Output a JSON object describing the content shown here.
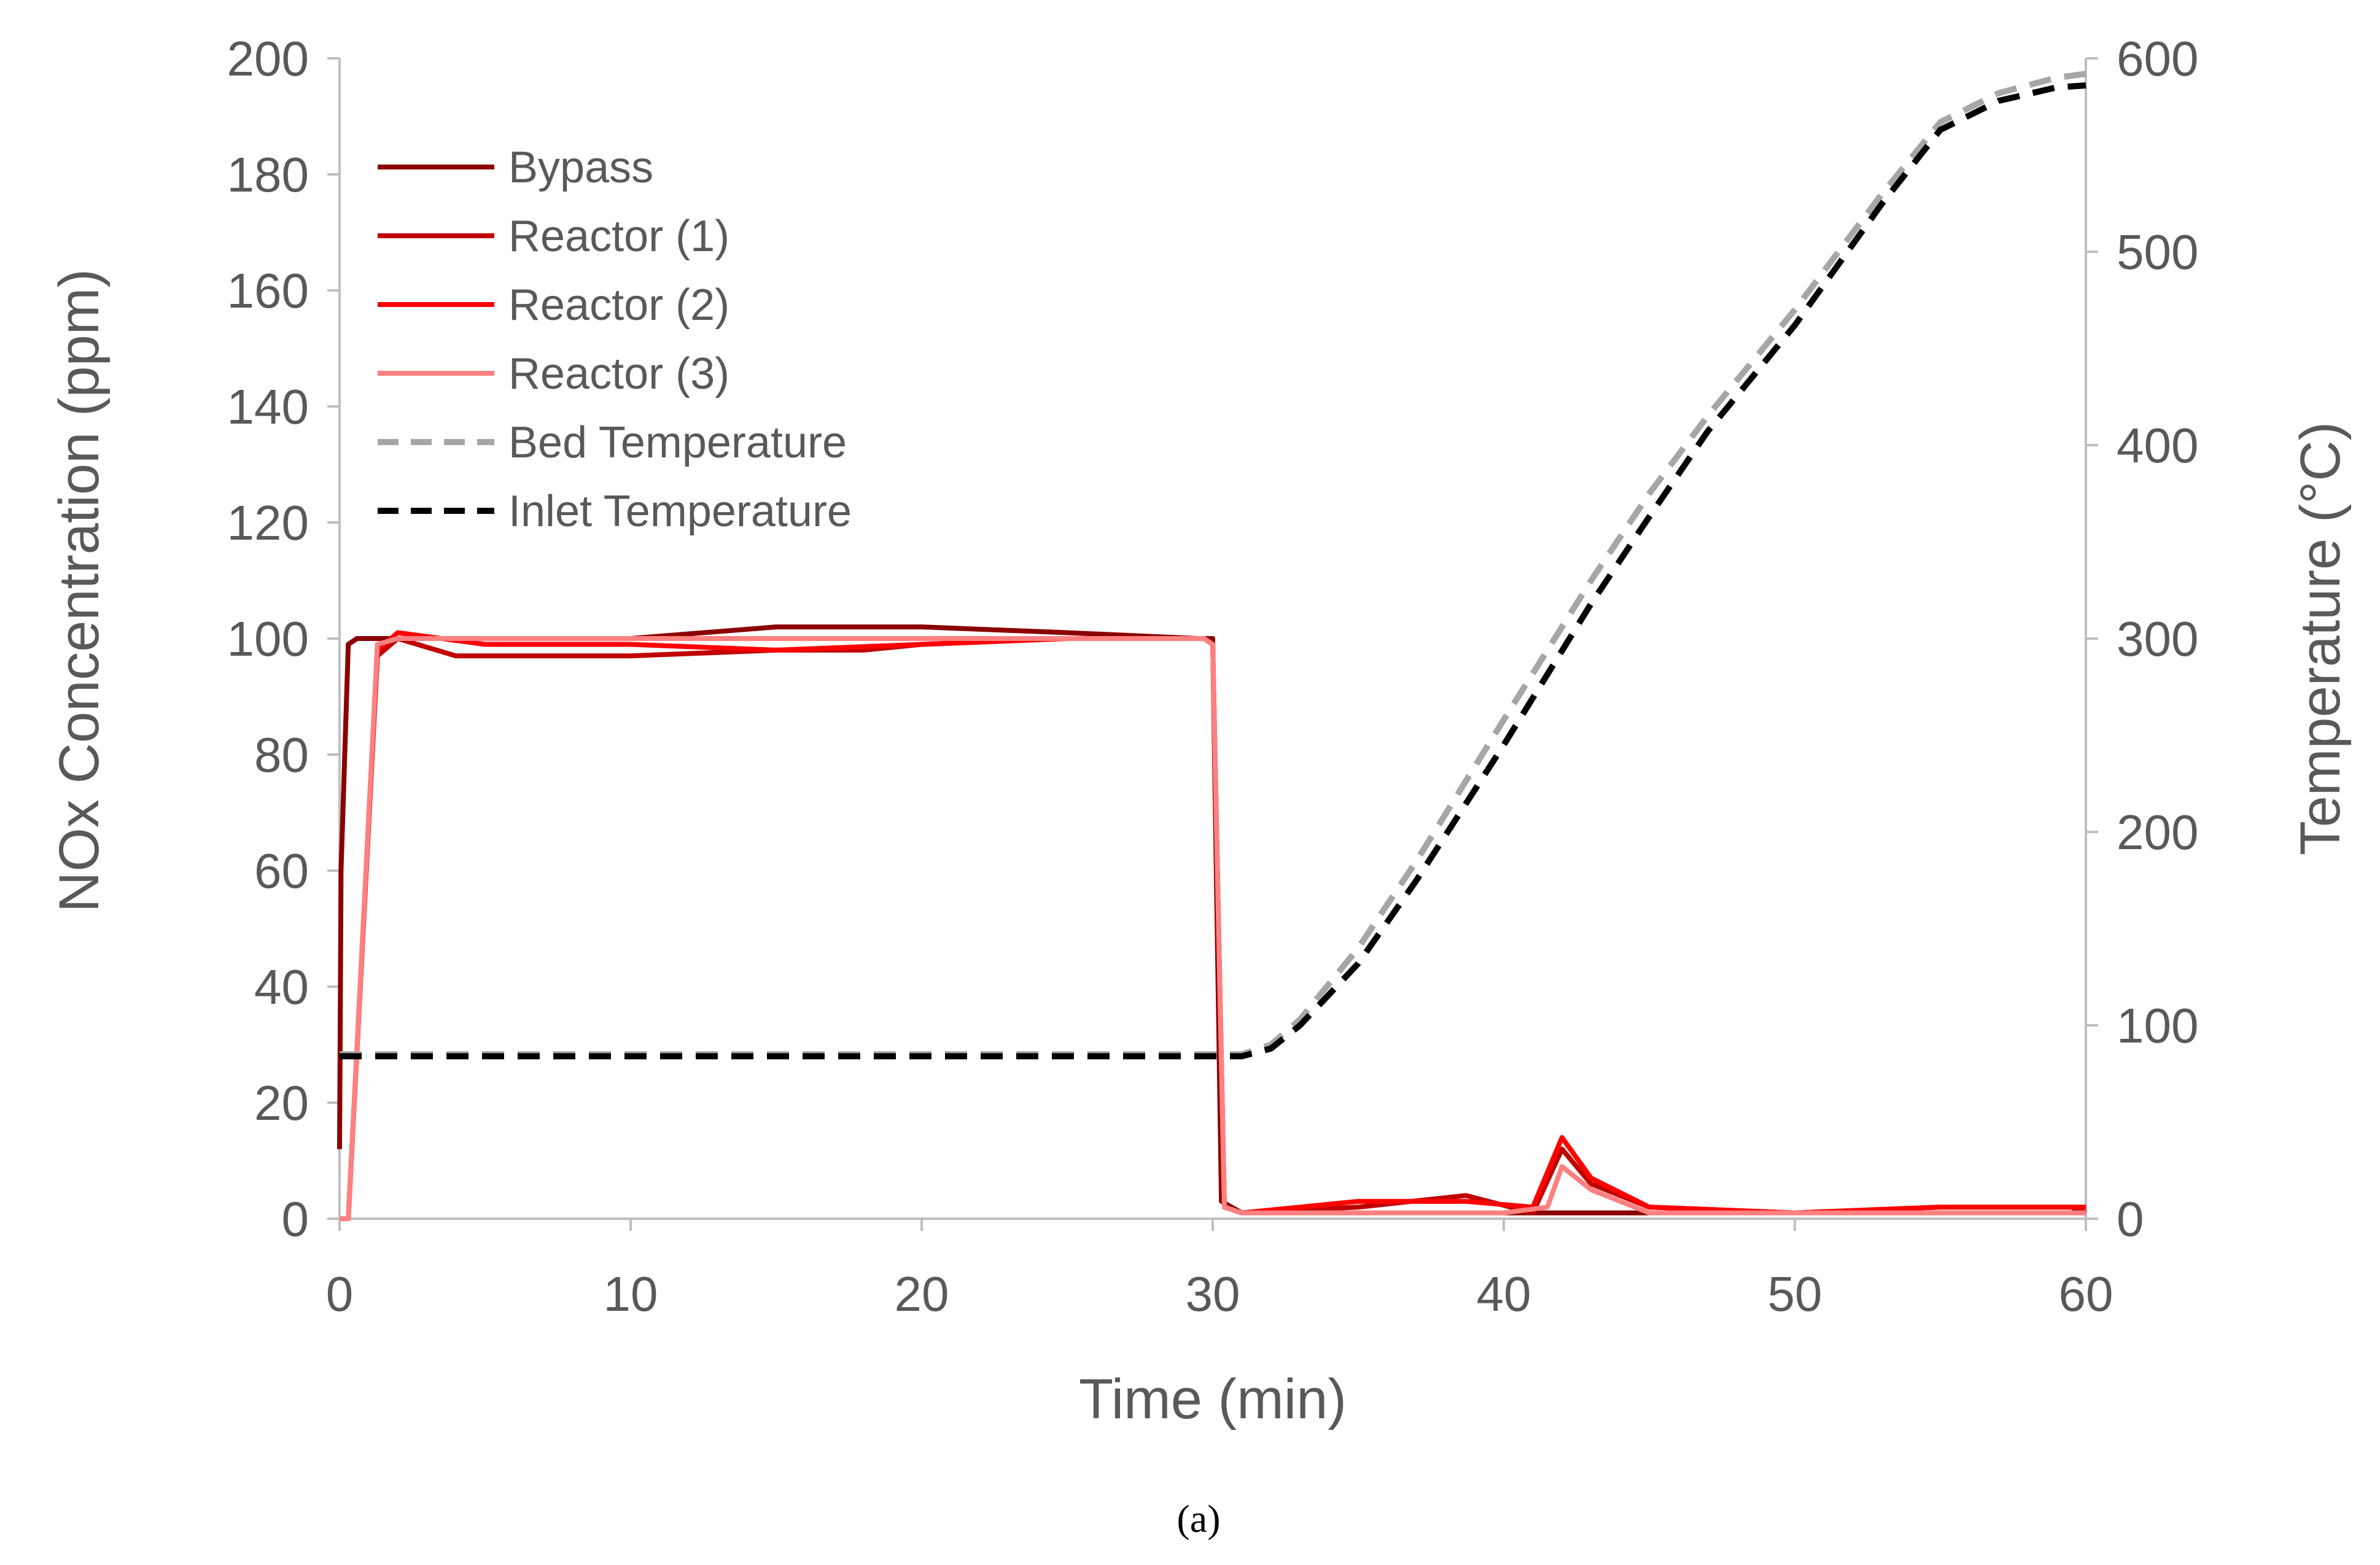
{
  "chart_data": {
    "type": "line",
    "title": "",
    "xlabel": "Time (min)",
    "ylabel_left": "NOx Concentration (ppm)",
    "ylabel_right": "Temperature (°C)",
    "xlim": [
      0,
      60
    ],
    "ylim_left": [
      0,
      200
    ],
    "ylim_right": [
      0,
      600
    ],
    "x_ticks": [
      "0",
      "10",
      "20",
      "30",
      "40",
      "50",
      "60"
    ],
    "y_left_ticks": [
      "0",
      "20",
      "40",
      "60",
      "80",
      "100",
      "120",
      "140",
      "160",
      "180",
      "200"
    ],
    "y_right_ticks": [
      "0",
      "100",
      "200",
      "300",
      "400",
      "500",
      "600"
    ],
    "grid": false,
    "legend_position": "top-left",
    "caption": "(a)",
    "series": [
      {
        "name": "Bypass",
        "axis": "left",
        "color": "#8B0000",
        "dash": "solid",
        "x": [
          0,
          0.05,
          0.3,
          0.6,
          2,
          5,
          10,
          15,
          20,
          25,
          29.5,
          30,
          30.3,
          31,
          35,
          40,
          42,
          45,
          50,
          55,
          60
        ],
        "y": [
          12,
          60,
          99,
          100,
          100,
          100,
          100,
          102,
          102,
          101,
          100,
          100,
          3,
          1,
          1,
          1,
          1,
          1,
          1,
          1,
          1
        ]
      },
      {
        "name": "Reactor (1)",
        "axis": "left",
        "color": "#C00000",
        "dash": "solid",
        "x": [
          0,
          0.3,
          1.3,
          2,
          4,
          6,
          10,
          15,
          18,
          20,
          25,
          29.7,
          30,
          30.4,
          31,
          35,
          38.7,
          41,
          42,
          43,
          45,
          50,
          55,
          59.5,
          60
        ],
        "y": [
          0,
          0,
          97,
          100,
          97,
          97,
          97,
          98,
          98,
          99,
          100,
          100,
          99,
          2,
          1,
          2,
          4,
          1,
          12,
          6,
          2,
          1,
          2,
          2,
          1
        ]
      },
      {
        "name": "Reactor (2)",
        "axis": "left",
        "color": "#FF0000",
        "dash": "solid",
        "x": [
          0,
          0.3,
          1.3,
          2,
          5,
          10,
          15,
          20,
          25,
          29.7,
          30,
          30.4,
          31,
          35,
          38.7,
          41,
          42,
          43,
          45,
          50,
          55,
          60
        ],
        "y": [
          0,
          0,
          98,
          101,
          99,
          99,
          98,
          99,
          100,
          100,
          99,
          2,
          1,
          3,
          3,
          2,
          14,
          7,
          2,
          1,
          2,
          2
        ]
      },
      {
        "name": "Reactor (3)",
        "axis": "left",
        "color": "#FF8080",
        "dash": "solid",
        "x": [
          0,
          0.3,
          1.3,
          2,
          5,
          10,
          15,
          20,
          25,
          29.7,
          30,
          30.4,
          31,
          35,
          40,
          41.5,
          42,
          43,
          45,
          50,
          55,
          60
        ],
        "y": [
          0,
          0,
          99,
          100,
          100,
          100,
          100,
          100,
          100,
          100,
          99,
          2,
          1,
          1,
          1,
          2,
          9,
          5,
          1,
          1,
          1,
          1
        ]
      },
      {
        "name": "Bed Temperature",
        "axis": "right",
        "color": "#A6A6A6",
        "dash": "dashed",
        "x": [
          0,
          30,
          31,
          32,
          33,
          35,
          37,
          40,
          43,
          45,
          47,
          50,
          53,
          55,
          57,
          59,
          60
        ],
        "y": [
          85,
          85,
          85,
          90,
          103,
          140,
          185,
          258,
          330,
          375,
          415,
          470,
          530,
          567,
          582,
          590,
          592
        ]
      },
      {
        "name": "Inlet Temperature",
        "axis": "right",
        "color": "#000000",
        "dash": "dashed",
        "x": [
          0,
          30,
          31,
          32,
          33,
          35,
          37,
          40,
          43,
          45,
          47,
          50,
          53,
          55,
          57,
          59,
          60
        ],
        "y": [
          84,
          84,
          84,
          88,
          100,
          132,
          175,
          245,
          318,
          363,
          407,
          462,
          525,
          563,
          578,
          585,
          586
        ]
      }
    ]
  }
}
